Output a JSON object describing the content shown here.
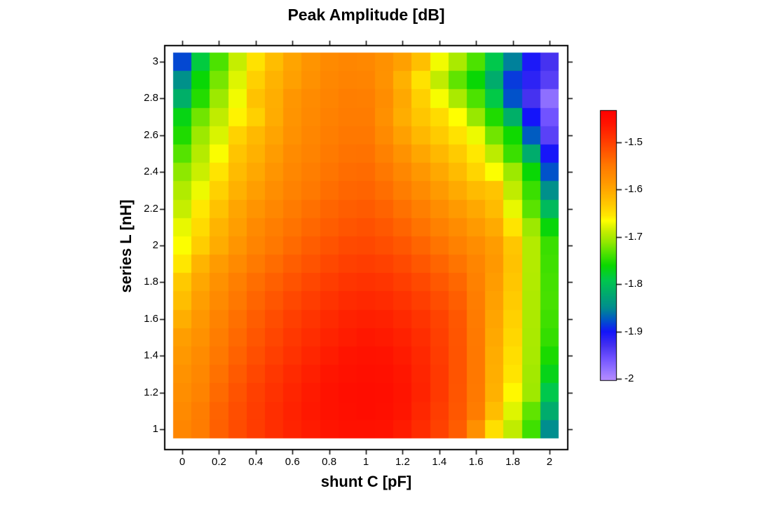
{
  "title": "Peak Amplitude [dB]",
  "chart_data": {
    "type": "heatmap",
    "title": "Peak Amplitude [dB]",
    "xlabel": "shunt C [pF]",
    "ylabel": "series L [nH]",
    "values_unit": "dB",
    "x": [
      0,
      0.1,
      0.2,
      0.3,
      0.4,
      0.5,
      0.6,
      0.7,
      0.8,
      0.9,
      1,
      1.1,
      1.2,
      1.3,
      1.4,
      1.5,
      1.6,
      1.7,
      1.8,
      1.9,
      2
    ],
    "y_rows_top_to_bottom": [
      3,
      2.9,
      2.8,
      2.7,
      2.6,
      2.5,
      2.4,
      2.3,
      2.2,
      2.1,
      2,
      1.9,
      1.8,
      1.7,
      1.6,
      1.5,
      1.4,
      1.3,
      1.2,
      1.1,
      1
    ],
    "values": [
      [
        -1.88,
        -1.785,
        -1.735,
        -1.688,
        -1.65,
        -1.62,
        -1.596,
        -1.58,
        -1.568,
        -1.564,
        -1.566,
        -1.576,
        -1.592,
        -1.622,
        -1.67,
        -1.7,
        -1.735,
        -1.79,
        -1.855,
        -1.905,
        -1.93
      ],
      [
        -1.845,
        -1.762,
        -1.72,
        -1.678,
        -1.636,
        -1.61,
        -1.592,
        -1.577,
        -1.565,
        -1.56,
        -1.561,
        -1.578,
        -1.608,
        -1.65,
        -1.69,
        -1.728,
        -1.762,
        -1.818,
        -1.885,
        -1.915,
        -1.94
      ],
      [
        -1.815,
        -1.75,
        -1.706,
        -1.67,
        -1.624,
        -1.606,
        -1.582,
        -1.57,
        -1.561,
        -1.555,
        -1.556,
        -1.572,
        -1.6,
        -1.636,
        -1.668,
        -1.7,
        -1.735,
        -1.788,
        -1.876,
        -1.93,
        -1.976
      ],
      [
        -1.768,
        -1.722,
        -1.69,
        -1.66,
        -1.636,
        -1.604,
        -1.58,
        -1.567,
        -1.558,
        -1.552,
        -1.552,
        -1.575,
        -1.605,
        -1.628,
        -1.645,
        -1.665,
        -1.708,
        -1.752,
        -1.815,
        -1.9,
        -1.956
      ],
      [
        -1.752,
        -1.706,
        -1.68,
        -1.638,
        -1.616,
        -1.596,
        -1.576,
        -1.564,
        -1.555,
        -1.548,
        -1.548,
        -1.568,
        -1.592,
        -1.615,
        -1.632,
        -1.65,
        -1.672,
        -1.722,
        -1.758,
        -1.872,
        -1.942
      ],
      [
        -1.732,
        -1.695,
        -1.667,
        -1.626,
        -1.608,
        -1.588,
        -1.57,
        -1.56,
        -1.55,
        -1.544,
        -1.543,
        -1.558,
        -1.578,
        -1.598,
        -1.615,
        -1.632,
        -1.655,
        -1.692,
        -1.742,
        -1.818,
        -1.902
      ],
      [
        -1.712,
        -1.686,
        -1.652,
        -1.618,
        -1.6,
        -1.581,
        -1.565,
        -1.555,
        -1.546,
        -1.539,
        -1.537,
        -1.548,
        -1.565,
        -1.583,
        -1.6,
        -1.618,
        -1.64,
        -1.666,
        -1.706,
        -1.762,
        -1.876
      ],
      [
        -1.697,
        -1.672,
        -1.637,
        -1.608,
        -1.59,
        -1.573,
        -1.559,
        -1.549,
        -1.54,
        -1.533,
        -1.531,
        -1.54,
        -1.554,
        -1.57,
        -1.586,
        -1.602,
        -1.618,
        -1.626,
        -1.69,
        -1.742,
        -1.846
      ],
      [
        -1.688,
        -1.655,
        -1.624,
        -1.597,
        -1.58,
        -1.565,
        -1.551,
        -1.541,
        -1.532,
        -1.526,
        -1.523,
        -1.53,
        -1.542,
        -1.556,
        -1.572,
        -1.586,
        -1.6,
        -1.618,
        -1.674,
        -1.73,
        -1.804
      ],
      [
        -1.674,
        -1.645,
        -1.611,
        -1.59,
        -1.568,
        -1.555,
        -1.544,
        -1.534,
        -1.525,
        -1.518,
        -1.515,
        -1.521,
        -1.531,
        -1.544,
        -1.558,
        -1.571,
        -1.586,
        -1.602,
        -1.652,
        -1.706,
        -1.764
      ],
      [
        -1.666,
        -1.634,
        -1.604,
        -1.581,
        -1.562,
        -1.548,
        -1.536,
        -1.525,
        -1.516,
        -1.509,
        -1.507,
        -1.512,
        -1.52,
        -1.532,
        -1.545,
        -1.558,
        -1.572,
        -1.588,
        -1.628,
        -1.696,
        -1.742
      ],
      [
        -1.654,
        -1.611,
        -1.587,
        -1.568,
        -1.55,
        -1.538,
        -1.526,
        -1.516,
        -1.507,
        -1.5,
        -1.497,
        -1.501,
        -1.509,
        -1.52,
        -1.532,
        -1.545,
        -1.563,
        -1.584,
        -1.624,
        -1.696,
        -1.74
      ],
      [
        -1.631,
        -1.599,
        -1.576,
        -1.556,
        -1.54,
        -1.528,
        -1.516,
        -1.506,
        -1.497,
        -1.49,
        -1.487,
        -1.49,
        -1.498,
        -1.508,
        -1.521,
        -1.534,
        -1.558,
        -1.588,
        -1.628,
        -1.697,
        -1.738
      ],
      [
        -1.621,
        -1.59,
        -1.568,
        -1.548,
        -1.532,
        -1.519,
        -1.507,
        -1.497,
        -1.488,
        -1.481,
        -1.478,
        -1.481,
        -1.488,
        -1.498,
        -1.511,
        -1.526,
        -1.554,
        -1.592,
        -1.632,
        -1.698,
        -1.737
      ],
      [
        -1.606,
        -1.583,
        -1.56,
        -1.541,
        -1.525,
        -1.511,
        -1.499,
        -1.489,
        -1.48,
        -1.473,
        -1.47,
        -1.472,
        -1.479,
        -1.489,
        -1.503,
        -1.52,
        -1.551,
        -1.596,
        -1.637,
        -1.699,
        -1.74
      ],
      [
        -1.59,
        -1.576,
        -1.554,
        -1.535,
        -1.519,
        -1.505,
        -1.493,
        -1.483,
        -1.474,
        -1.467,
        -1.463,
        -1.465,
        -1.472,
        -1.483,
        -1.499,
        -1.518,
        -1.549,
        -1.6,
        -1.642,
        -1.7,
        -1.744
      ],
      [
        -1.584,
        -1.57,
        -1.548,
        -1.529,
        -1.513,
        -1.499,
        -1.487,
        -1.476,
        -1.467,
        -1.46,
        -1.457,
        -1.458,
        -1.466,
        -1.478,
        -1.496,
        -1.517,
        -1.548,
        -1.604,
        -1.647,
        -1.701,
        -1.754
      ],
      [
        -1.578,
        -1.565,
        -1.542,
        -1.522,
        -1.506,
        -1.492,
        -1.48,
        -1.47,
        -1.461,
        -1.455,
        -1.452,
        -1.454,
        -1.462,
        -1.475,
        -1.494,
        -1.517,
        -1.548,
        -1.606,
        -1.652,
        -1.703,
        -1.77
      ],
      [
        -1.573,
        -1.56,
        -1.536,
        -1.516,
        -1.5,
        -1.487,
        -1.475,
        -1.465,
        -1.457,
        -1.451,
        -1.449,
        -1.451,
        -1.46,
        -1.474,
        -1.494,
        -1.518,
        -1.549,
        -1.608,
        -1.662,
        -1.705,
        -1.79
      ],
      [
        -1.568,
        -1.554,
        -1.53,
        -1.512,
        -1.497,
        -1.484,
        -1.473,
        -1.464,
        -1.457,
        -1.452,
        -1.45,
        -1.452,
        -1.461,
        -1.477,
        -1.497,
        -1.52,
        -1.552,
        -1.62,
        -1.678,
        -1.728,
        -1.818
      ],
      [
        -1.564,
        -1.552,
        -1.528,
        -1.51,
        -1.496,
        -1.484,
        -1.474,
        -1.466,
        -1.46,
        -1.456,
        -1.455,
        -1.457,
        -1.466,
        -1.482,
        -1.501,
        -1.524,
        -1.575,
        -1.648,
        -1.69,
        -1.74,
        -1.848
      ]
    ],
    "x_ticks": {
      "labels": [
        "0",
        "0.2",
        "0.4",
        "0.6",
        "0.8",
        "1",
        "1.2",
        "1.4",
        "1.6",
        "1.8",
        "2"
      ],
      "values": [
        0,
        0.2,
        0.4,
        0.6,
        0.8,
        1,
        1.2,
        1.4,
        1.6,
        1.8,
        2
      ]
    },
    "y_ticks": {
      "labels": [
        "1",
        "1.2",
        "1.4",
        "1.6",
        "1.8",
        "2",
        "2.2",
        "2.4",
        "2.6",
        "2.8",
        "3"
      ],
      "values": [
        1,
        1.2,
        1.4,
        1.6,
        1.8,
        2,
        2.2,
        2.4,
        2.6,
        2.8,
        3
      ]
    },
    "colorbar": {
      "tick_labels": [
        "-1.5",
        "-1.6",
        "-1.7",
        "-1.8",
        "-1.9",
        "-2"
      ],
      "tick_values": [
        -1.5,
        -1.6,
        -1.7,
        -1.8,
        -1.9,
        -2
      ],
      "value_top": -1.432,
      "value_bottom": -2.003,
      "stops": [
        [
          -1.43,
          "#ff0000"
        ],
        [
          -1.46,
          "#ff1400"
        ],
        [
          -1.5,
          "#ff4000"
        ],
        [
          -1.55,
          "#ff7a00"
        ],
        [
          -1.58,
          "#ff9400"
        ],
        [
          -1.6,
          "#ffa800"
        ],
        [
          -1.63,
          "#ffc800"
        ],
        [
          -1.655,
          "#ffe800"
        ],
        [
          -1.665,
          "#ffff00"
        ],
        [
          -1.69,
          "#c0ec00"
        ],
        [
          -1.71,
          "#94e800"
        ],
        [
          -1.735,
          "#4ce200"
        ],
        [
          -1.76,
          "#0ad800"
        ],
        [
          -1.79,
          "#00c84c"
        ],
        [
          -1.82,
          "#00aa6e"
        ],
        [
          -1.85,
          "#008c90"
        ],
        [
          -1.875,
          "#0055c8"
        ],
        [
          -1.9,
          "#1414fa"
        ],
        [
          -1.93,
          "#4632f0"
        ],
        [
          -1.955,
          "#7052ff"
        ],
        [
          -1.98,
          "#9474ff"
        ],
        [
          -2.005,
          "#bb8fff"
        ]
      ]
    },
    "grid": false,
    "frame_color": "#000000",
    "background_color": "#ffffff"
  }
}
